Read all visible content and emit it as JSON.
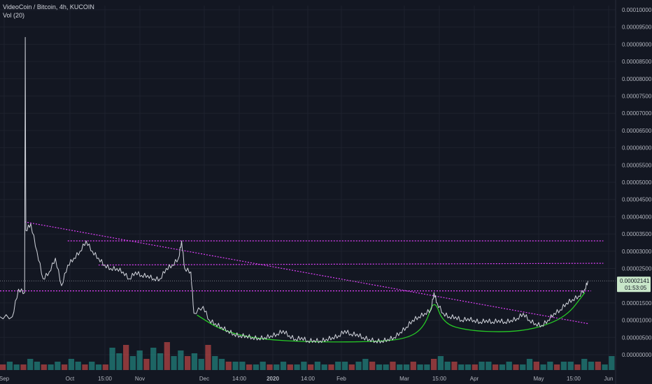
{
  "chart_data": {
    "type": "line",
    "title": "VideoCoin / Bitcoin, 4h, KUCOIN",
    "volume_label": "Vol (20)",
    "x_tick_labels": [
      "Sep",
      "Oct",
      "15:00",
      "Nov",
      "Dec",
      "14:00",
      "2020",
      "14:00",
      "Feb",
      "Mar",
      "15:00",
      "Apr",
      "May",
      "15:00",
      "Jun"
    ],
    "y_tick_labels": [
      "0.00010000",
      "0.00009500",
      "0.00009000",
      "0.00008500",
      "0.00008000",
      "0.00007500",
      "0.00007000",
      "0.00006500",
      "0.00006000",
      "0.00005500",
      "0.00005000",
      "0.00004500",
      "0.00004000",
      "0.00003500",
      "0.00003000",
      "0.00002500",
      "0.00001500",
      "0.00001000",
      "0.00000500",
      "0.00000000"
    ],
    "y_ticks": [
      0.0001,
      9.5e-05,
      9e-05,
      8.5e-05,
      8e-05,
      7.5e-05,
      7e-05,
      6.5e-05,
      6e-05,
      5.5e-05,
      5e-05,
      4.5e-05,
      4e-05,
      3.5e-05,
      3e-05,
      2.5e-05,
      1.5e-05,
      1e-05,
      5e-06,
      0.0
    ],
    "ylim": [
      0.0,
      0.0001
    ],
    "last_price": "0.00002141",
    "last_price_value": 2.141e-05,
    "countdown": "01:53:05",
    "grid": true,
    "colors": {
      "background": "#131722",
      "price": "#d1d4dc",
      "trendline": "#e040fb",
      "curve": "#26c926",
      "volume_up": "#26a69a",
      "volume_down": "#ef5350",
      "price_tag": "#c8e6c9"
    },
    "series": [
      {
        "name": "",
        "points": [
          [
            0,
            1.1e-05
          ],
          [
            0.02,
            1.1e-05
          ],
          [
            0.03,
            1.9e-05
          ],
          [
            0.04,
            1.8e-05
          ],
          [
            0.041,
            9.2e-05
          ],
          [
            0.042,
            3.6e-05
          ],
          [
            0.05,
            3.8e-05
          ],
          [
            0.06,
            3e-05
          ],
          [
            0.07,
            2.2e-05
          ],
          [
            0.08,
            2.4e-05
          ],
          [
            0.09,
            2.8e-05
          ],
          [
            0.1,
            2e-05
          ],
          [
            0.11,
            2.6e-05
          ],
          [
            0.12,
            2.8e-05
          ],
          [
            0.13,
            3e-05
          ],
          [
            0.14,
            3.3e-05
          ],
          [
            0.15,
            3e-05
          ],
          [
            0.16,
            2.8e-05
          ],
          [
            0.17,
            2.6e-05
          ],
          [
            0.18,
            2.5e-05
          ],
          [
            0.19,
            2.5e-05
          ],
          [
            0.2,
            2.4e-05
          ],
          [
            0.21,
            2.2e-05
          ],
          [
            0.22,
            2.4e-05
          ],
          [
            0.23,
            2.3e-05
          ],
          [
            0.24,
            2.3e-05
          ],
          [
            0.25,
            2.2e-05
          ],
          [
            0.26,
            2.2e-05
          ],
          [
            0.27,
            2.5e-05
          ],
          [
            0.28,
            2.6e-05
          ],
          [
            0.29,
            2.8e-05
          ],
          [
            0.295,
            3.3e-05
          ],
          [
            0.3,
            2.5e-05
          ],
          [
            0.31,
            2.4e-05
          ],
          [
            0.315,
            1.2e-05
          ],
          [
            0.33,
            1.4e-05
          ],
          [
            0.34,
            1e-05
          ],
          [
            0.35,
            9e-06
          ],
          [
            0.36,
            8e-06
          ],
          [
            0.37,
            7e-06
          ],
          [
            0.38,
            6e-06
          ],
          [
            0.39,
            5.5e-06
          ],
          [
            0.4,
            5.5e-06
          ],
          [
            0.41,
            5e-06
          ],
          [
            0.42,
            4.8e-06
          ],
          [
            0.43,
            5e-06
          ],
          [
            0.44,
            5.5e-06
          ],
          [
            0.45,
            6e-06
          ],
          [
            0.46,
            7e-06
          ],
          [
            0.47,
            5.5e-06
          ],
          [
            0.48,
            4.5e-06
          ],
          [
            0.49,
            5e-06
          ],
          [
            0.5,
            4e-06
          ],
          [
            0.51,
            4.2e-06
          ],
          [
            0.52,
            4e-06
          ],
          [
            0.53,
            4.5e-06
          ],
          [
            0.54,
            5e-06
          ],
          [
            0.55,
            5.5e-06
          ],
          [
            0.56,
            7e-06
          ],
          [
            0.57,
            6e-06
          ],
          [
            0.58,
            6e-06
          ],
          [
            0.59,
            5e-06
          ],
          [
            0.6,
            4.5e-06
          ],
          [
            0.61,
            4e-06
          ],
          [
            0.62,
            4e-06
          ],
          [
            0.63,
            4.5e-06
          ],
          [
            0.64,
            5e-06
          ],
          [
            0.65,
            6.5e-06
          ],
          [
            0.66,
            8e-06
          ],
          [
            0.67,
            1e-05
          ],
          [
            0.68,
            1.1e-05
          ],
          [
            0.69,
            1.2e-05
          ],
          [
            0.7,
            1.3e-05
          ],
          [
            0.705,
            1.8e-05
          ],
          [
            0.71,
            1.5e-05
          ],
          [
            0.72,
            1.2e-05
          ],
          [
            0.73,
            1.1e-05
          ],
          [
            0.74,
            1.1e-05
          ],
          [
            0.75,
            1e-05
          ],
          [
            0.76,
            1.05e-05
          ],
          [
            0.77,
            1e-05
          ],
          [
            0.78,
            9.5e-06
          ],
          [
            0.79,
            1e-05
          ],
          [
            0.8,
            9.5e-06
          ],
          [
            0.81,
            1e-05
          ],
          [
            0.82,
            9.5e-06
          ],
          [
            0.83,
            1e-05
          ],
          [
            0.84,
            1.05e-05
          ],
          [
            0.85,
            1.2e-05
          ],
          [
            0.86,
            1e-05
          ],
          [
            0.87,
            9e-06
          ],
          [
            0.88,
            8.5e-06
          ],
          [
            0.89,
            1e-05
          ],
          [
            0.9,
            1.2e-05
          ],
          [
            0.91,
            1.3e-05
          ],
          [
            0.92,
            1.5e-05
          ],
          [
            0.93,
            1.6e-05
          ],
          [
            0.94,
            1.7e-05
          ],
          [
            0.95,
            1.9e-05
          ],
          [
            0.955,
            2.141e-05
          ]
        ]
      }
    ],
    "trendlines": [
      {
        "from": [
          0.04,
          3.85e-05
        ],
        "to": [
          0.955,
          9e-06
        ]
      },
      {
        "from": [
          0.11,
          3.3e-05
        ],
        "to": [
          0.98,
          3.3e-05
        ]
      },
      {
        "from": [
          0.16,
          2.6e-05
        ],
        "to": [
          0.98,
          2.65e-05
        ]
      },
      {
        "from": [
          0.0,
          1.85e-05
        ],
        "to": [
          0.96,
          1.85e-05
        ]
      }
    ],
    "curve": {
      "points": [
        [
          0.32,
          1.15e-05
        ],
        [
          0.36,
          7e-06
        ],
        [
          0.42,
          4.5e-06
        ],
        [
          0.5,
          3.7e-06
        ],
        [
          0.6,
          3.7e-06
        ],
        [
          0.66,
          4.5e-06
        ],
        [
          0.69,
          8e-06
        ],
        [
          0.705,
          1.65e-05
        ],
        [
          0.72,
          9e-06
        ],
        [
          0.76,
          7e-06
        ],
        [
          0.82,
          6.5e-06
        ],
        [
          0.87,
          7.5e-06
        ],
        [
          0.92,
          1.1e-05
        ],
        [
          0.95,
          1.8e-05
        ]
      ]
    },
    "volume": [
      2,
      3,
      2,
      2,
      4,
      3,
      2,
      2,
      3,
      2,
      4,
      3,
      2,
      3,
      2,
      2,
      8,
      6,
      9,
      5,
      7,
      4,
      8,
      6,
      10,
      5,
      7,
      5,
      6,
      4,
      9,
      5,
      4,
      3,
      3,
      3,
      2,
      2,
      3,
      2,
      2,
      3,
      2,
      2,
      3,
      2,
      3,
      2,
      2,
      3,
      3,
      2,
      3,
      4,
      3,
      2,
      2,
      3,
      2,
      2,
      3,
      2,
      2,
      4,
      5,
      3,
      3,
      2,
      2,
      2,
      3,
      3,
      2,
      2,
      3,
      2,
      2,
      4,
      3,
      2,
      3,
      2,
      3,
      3,
      2,
      4,
      3,
      3,
      2,
      5
    ]
  }
}
